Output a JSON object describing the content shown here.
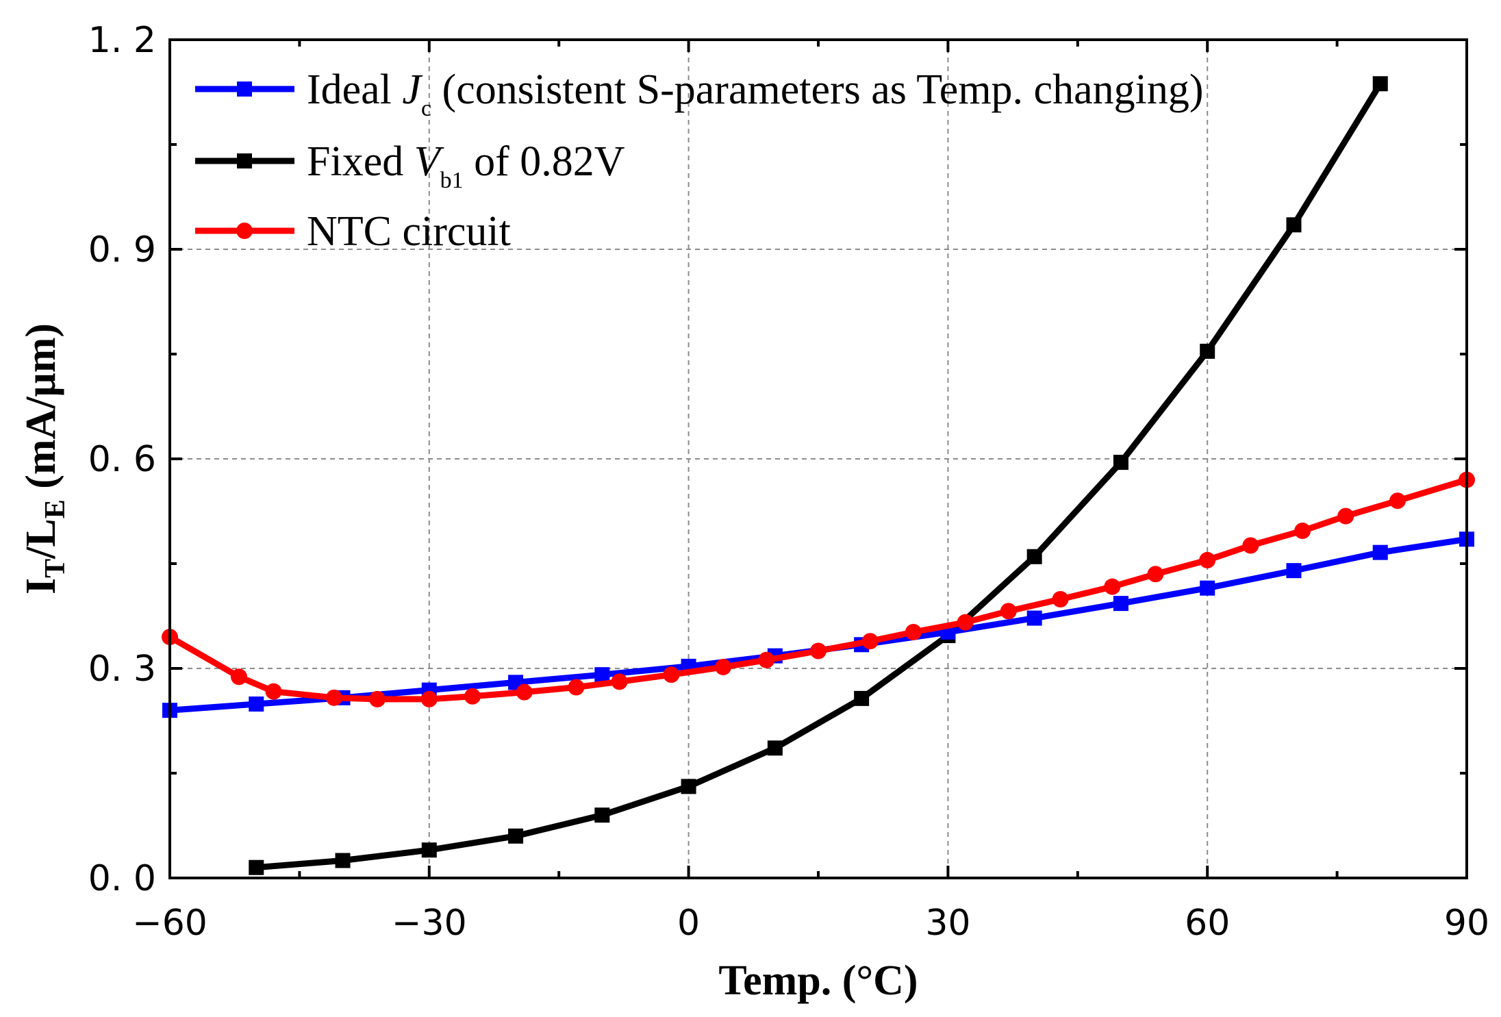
{
  "chart_data": {
    "type": "line",
    "title": "",
    "xlabel": "Temp. (°C)",
    "ylabel": {
      "main_1": "I",
      "sub_1": "T",
      "main_2": "/L",
      "sub_2": "E",
      "rest": " (mA/μm)"
    },
    "xlim": [
      -60,
      90
    ],
    "ylim": [
      0.0,
      1.2
    ],
    "x_ticks": [
      -60,
      -30,
      0,
      30,
      60,
      90
    ],
    "x_tick_labels": [
      "−60",
      "−30",
      "0",
      "30",
      "60",
      "90"
    ],
    "y_ticks": [
      0.0,
      0.3,
      0.6,
      0.9,
      1.2
    ],
    "y_tick_labels": [
      "0. 0",
      "0. 3",
      "0. 6",
      "0. 9",
      "1. 2"
    ],
    "grid": true,
    "legend_position": "top-left",
    "legend": [
      {
        "pre": "Ideal ",
        "ital": "J",
        "sub": "c",
        "post": "  (consistent S-parameters as Temp. changing)"
      },
      {
        "pre": "Fixed ",
        "ital": "V",
        "sub": "b1",
        "post": " of 0.82V"
      },
      {
        "pre": "NTC circuit",
        "ital": "",
        "sub": "",
        "post": ""
      }
    ],
    "series": [
      {
        "marker": "square",
        "color": "#0000ff",
        "x": [
          -60,
          -50,
          -40,
          -30,
          -20,
          -10,
          0,
          10,
          20,
          30,
          40,
          50,
          60,
          70,
          80,
          90
        ],
        "y": [
          0.24,
          0.249,
          0.258,
          0.269,
          0.28,
          0.291,
          0.303,
          0.318,
          0.334,
          0.352,
          0.372,
          0.393,
          0.415,
          0.44,
          0.466,
          0.485
        ]
      },
      {
        "marker": "square",
        "color": "#000000",
        "x": [
          -50,
          -40,
          -30,
          -20,
          -10,
          0,
          10,
          20,
          30,
          40,
          50,
          60,
          70,
          80
        ],
        "y": [
          0.015,
          0.025,
          0.04,
          0.06,
          0.09,
          0.131,
          0.186,
          0.257,
          0.347,
          0.46,
          0.595,
          0.754,
          0.935,
          1.137
        ]
      },
      {
        "marker": "circle",
        "color": "#ff0000",
        "x": [
          -60,
          -52,
          -48,
          -41,
          -36,
          -30,
          -25,
          -19,
          -13,
          -8,
          -2,
          4,
          9,
          15,
          21,
          26,
          32,
          37,
          43,
          49,
          54,
          60,
          65,
          71,
          76,
          82,
          90
        ],
        "y": [
          0.345,
          0.288,
          0.267,
          0.258,
          0.256,
          0.256,
          0.26,
          0.266,
          0.273,
          0.281,
          0.291,
          0.302,
          0.312,
          0.325,
          0.339,
          0.352,
          0.366,
          0.382,
          0.399,
          0.417,
          0.435,
          0.455,
          0.476,
          0.497,
          0.518,
          0.54,
          0.57
        ]
      }
    ]
  }
}
